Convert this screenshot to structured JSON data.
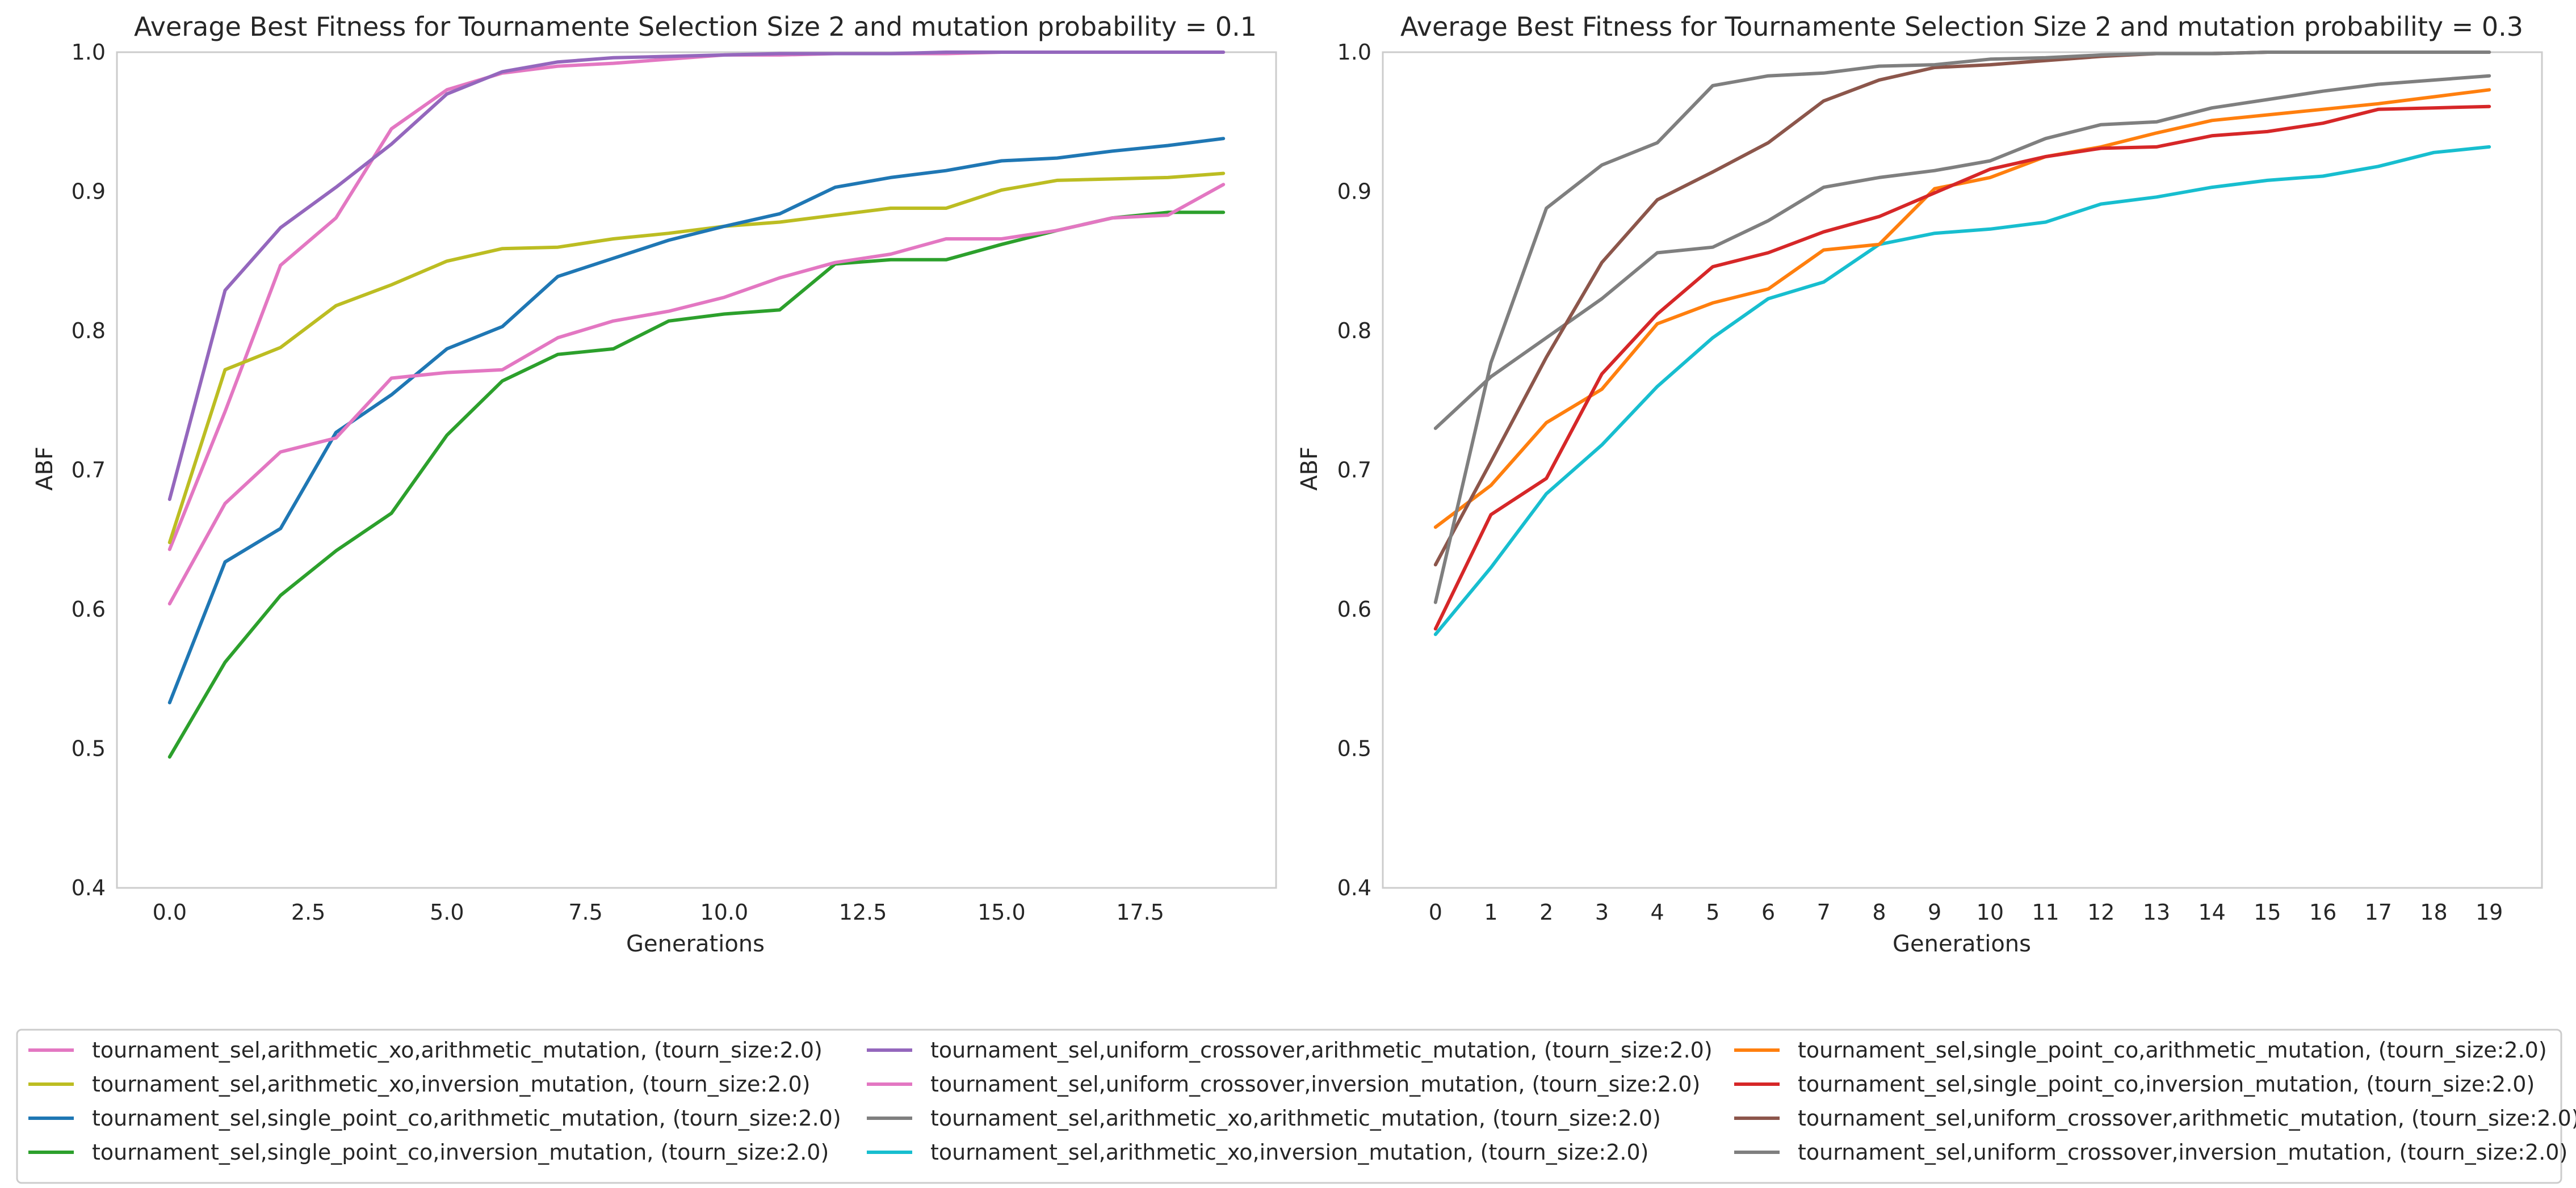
{
  "chart_data": [
    {
      "type": "line",
      "title": "Average Best Fitness for Tournamente Selection Size 2 and mutation probability = 0.1",
      "xlabel": "Generations",
      "ylabel": "ABF",
      "xlim": [
        -0.95,
        19.95
      ],
      "ylim": [
        0.4,
        1.0
      ],
      "xticks": [
        0,
        2.5,
        5,
        7.5,
        10,
        12.5,
        15,
        17.5
      ],
      "xtick_labels": [
        "0.0",
        "2.5",
        "5.0",
        "7.5",
        "10.0",
        "12.5",
        "15.0",
        "17.5"
      ],
      "yticks": [
        0.4,
        0.5,
        0.6,
        0.7,
        0.8,
        0.9,
        1.0
      ],
      "ytick_labels": [
        "0.4",
        "0.5",
        "0.6",
        "0.7",
        "0.8",
        "0.9",
        "1.0"
      ],
      "grid": false,
      "x": [
        0,
        1,
        2,
        3,
        4,
        5,
        6,
        7,
        8,
        9,
        10,
        11,
        12,
        13,
        14,
        15,
        16,
        17,
        18,
        19
      ],
      "series": [
        {
          "color": "#e377c2",
          "values": [
            0.643,
            0.742,
            0.847,
            0.881,
            0.945,
            0.973,
            0.985,
            0.99,
            0.992,
            0.995,
            0.998,
            0.998,
            0.999,
            0.999,
            0.999,
            1.0,
            1.0,
            1.0,
            1.0,
            1.0
          ]
        },
        {
          "color": "#bcbd22",
          "values": [
            0.648,
            0.772,
            0.788,
            0.818,
            0.833,
            0.85,
            0.859,
            0.86,
            0.866,
            0.87,
            0.875,
            0.878,
            0.883,
            0.888,
            0.888,
            0.901,
            0.908,
            0.909,
            0.91,
            0.913
          ]
        },
        {
          "color": "#1f77b4",
          "values": [
            0.533,
            0.634,
            0.658,
            0.727,
            0.754,
            0.787,
            0.803,
            0.839,
            0.852,
            0.865,
            0.875,
            0.884,
            0.903,
            0.91,
            0.915,
            0.922,
            0.924,
            0.929,
            0.933,
            0.938
          ]
        },
        {
          "color": "#2ca02c",
          "values": [
            0.494,
            0.562,
            0.61,
            0.642,
            0.669,
            0.725,
            0.764,
            0.783,
            0.787,
            0.807,
            0.812,
            0.815,
            0.848,
            0.851,
            0.851,
            0.862,
            0.872,
            0.881,
            0.885,
            0.885
          ]
        },
        {
          "color": "#9467bd",
          "values": [
            0.679,
            0.829,
            0.874,
            0.903,
            0.934,
            0.97,
            0.986,
            0.993,
            0.996,
            0.997,
            0.998,
            0.999,
            0.999,
            0.999,
            1.0,
            1.0,
            1.0,
            1.0,
            1.0,
            1.0
          ]
        },
        {
          "color": "#e377c2",
          "values": [
            0.604,
            0.676,
            0.713,
            0.723,
            0.766,
            0.77,
            0.772,
            0.795,
            0.807,
            0.814,
            0.824,
            0.838,
            0.849,
            0.855,
            0.866,
            0.866,
            0.872,
            0.881,
            0.883,
            0.905
          ]
        }
      ]
    },
    {
      "type": "line",
      "title": "Average Best Fitness for Tournamente Selection Size 2 and mutation probability = 0.3",
      "xlabel": "Generations",
      "ylabel": "ABF",
      "xlim": [
        -0.95,
        19.95
      ],
      "ylim": [
        0.4,
        1.0
      ],
      "xticks": [
        0,
        1,
        2,
        3,
        4,
        5,
        6,
        7,
        8,
        9,
        10,
        11,
        12,
        13,
        14,
        15,
        16,
        17,
        18,
        19
      ],
      "xtick_labels": [
        "0",
        "1",
        "2",
        "3",
        "4",
        "5",
        "6",
        "7",
        "8",
        "9",
        "10",
        "11",
        "12",
        "13",
        "14",
        "15",
        "16",
        "17",
        "18",
        "19"
      ],
      "yticks": [
        0.4,
        0.5,
        0.6,
        0.7,
        0.8,
        0.9,
        1.0
      ],
      "ytick_labels": [
        "0.4",
        "0.5",
        "0.6",
        "0.7",
        "0.8",
        "0.9",
        "1.0"
      ],
      "grid": false,
      "x": [
        0,
        1,
        2,
        3,
        4,
        5,
        6,
        7,
        8,
        9,
        10,
        11,
        12,
        13,
        14,
        15,
        16,
        17,
        18,
        19
      ],
      "series": [
        {
          "color": "#7f7f7f",
          "values": [
            0.73,
            0.767,
            0.795,
            0.823,
            0.856,
            0.86,
            0.879,
            0.903,
            0.91,
            0.915,
            0.922,
            0.938,
            0.948,
            0.95,
            0.96,
            0.966,
            0.972,
            0.977,
            0.98,
            0.983
          ]
        },
        {
          "color": "#17becf",
          "values": [
            0.582,
            0.63,
            0.683,
            0.718,
            0.76,
            0.795,
            0.823,
            0.835,
            0.862,
            0.87,
            0.873,
            0.878,
            0.891,
            0.896,
            0.903,
            0.908,
            0.911,
            0.918,
            0.928,
            0.932
          ]
        },
        {
          "color": "#ff7f0e",
          "values": [
            0.659,
            0.689,
            0.734,
            0.758,
            0.805,
            0.82,
            0.83,
            0.858,
            0.862,
            0.902,
            0.91,
            0.925,
            0.932,
            0.942,
            0.951,
            0.955,
            0.959,
            0.963,
            0.968,
            0.973
          ]
        },
        {
          "color": "#d62728",
          "values": [
            0.586,
            0.668,
            0.694,
            0.769,
            0.812,
            0.846,
            0.856,
            0.871,
            0.882,
            0.899,
            0.916,
            0.925,
            0.931,
            0.932,
            0.94,
            0.943,
            0.949,
            0.959,
            0.96,
            0.961
          ]
        },
        {
          "color": "#8c564b",
          "values": [
            0.632,
            0.706,
            0.781,
            0.849,
            0.894,
            0.914,
            0.935,
            0.965,
            0.98,
            0.989,
            0.991,
            0.994,
            0.997,
            0.999,
            0.999,
            1.0,
            1.0,
            1.0,
            1.0,
            1.0
          ]
        },
        {
          "color": "#7f7f7f",
          "values": [
            0.605,
            0.777,
            0.888,
            0.919,
            0.935,
            0.976,
            0.983,
            0.985,
            0.99,
            0.991,
            0.995,
            0.996,
            0.998,
            0.999,
            0.999,
            1.0,
            1.0,
            1.0,
            1.0,
            1.0
          ]
        }
      ]
    }
  ],
  "legend": {
    "placement": "bottom",
    "entries": [
      {
        "label": "tournament_sel,arithmetic_xo,arithmetic_mutation, (tourn_size:2.0)",
        "color": "#e377c2"
      },
      {
        "label": "tournament_sel,arithmetic_xo,inversion_mutation, (tourn_size:2.0)",
        "color": "#bcbd22"
      },
      {
        "label": "tournament_sel,single_point_co,arithmetic_mutation, (tourn_size:2.0)",
        "color": "#1f77b4"
      },
      {
        "label": "tournament_sel,single_point_co,inversion_mutation, (tourn_size:2.0)",
        "color": "#2ca02c"
      },
      {
        "label": "tournament_sel,uniform_crossover,arithmetic_mutation, (tourn_size:2.0)",
        "color": "#9467bd"
      },
      {
        "label": "tournament_sel,uniform_crossover,inversion_mutation, (tourn_size:2.0)",
        "color": "#e377c2"
      },
      {
        "label": "tournament_sel,arithmetic_xo,arithmetic_mutation, (tourn_size:2.0)",
        "color": "#7f7f7f"
      },
      {
        "label": "tournament_sel,arithmetic_xo,inversion_mutation, (tourn_size:2.0)",
        "color": "#17becf"
      },
      {
        "label": "tournament_sel,single_point_co,arithmetic_mutation, (tourn_size:2.0)",
        "color": "#ff7f0e"
      },
      {
        "label": "tournament_sel,single_point_co,inversion_mutation, (tourn_size:2.0)",
        "color": "#d62728"
      },
      {
        "label": "tournament_sel,uniform_crossover,arithmetic_mutation, (tourn_size:2.0)",
        "color": "#8c564b"
      },
      {
        "label": "tournament_sel,uniform_crossover,inversion_mutation, (tourn_size:2.0)",
        "color": "#7f7f7f"
      }
    ]
  }
}
